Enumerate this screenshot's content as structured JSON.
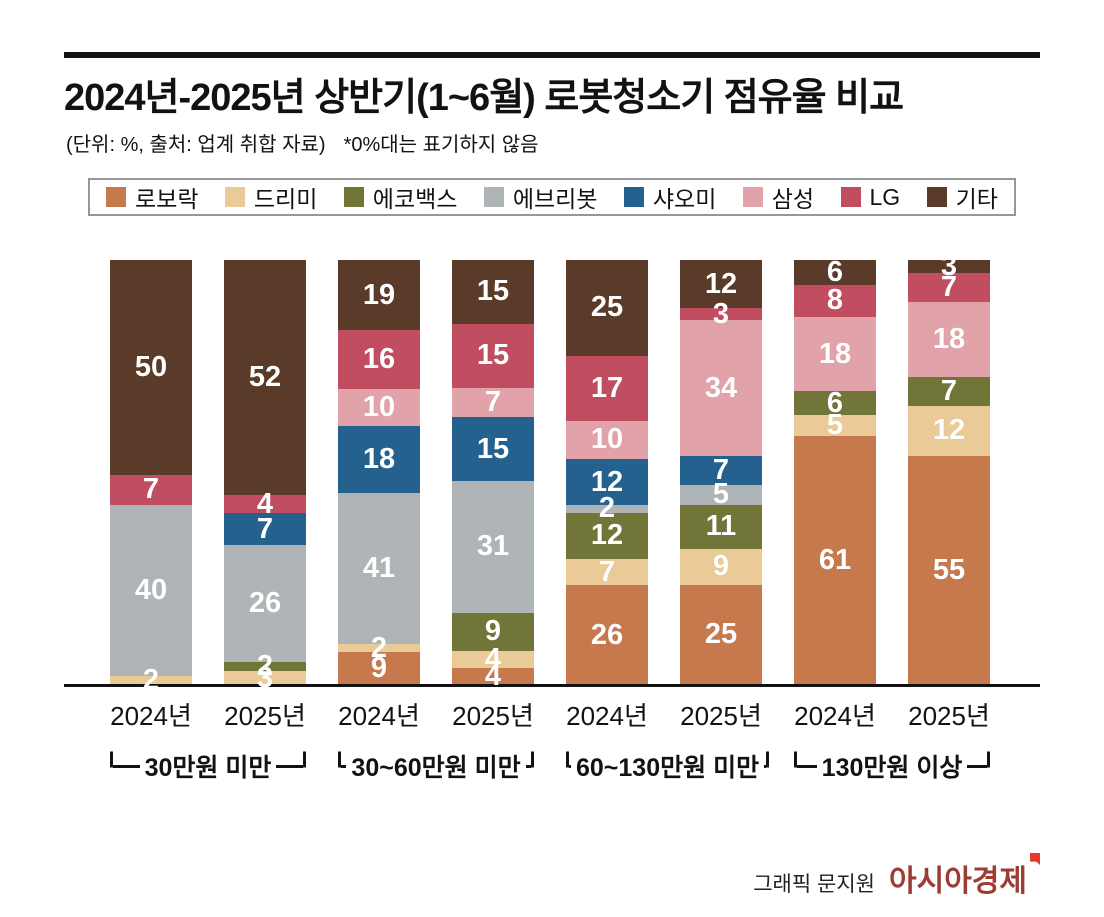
{
  "header": {
    "title": "2024년-2025년 상반기(1~6월) 로봇청소기 점유율 비교",
    "subtitle": "(단위: %, 출처: 업계 취합 자료)",
    "note": "*0%대는 표기하지 않음"
  },
  "legend": {
    "items": [
      {
        "label": "로보락",
        "color": "#C7794E"
      },
      {
        "label": "드리미",
        "color": "#EACA96"
      },
      {
        "label": "에코백스",
        "color": "#717538"
      },
      {
        "label": "에브리봇",
        "color": "#AFB5B7"
      },
      {
        "label": "샤오미",
        "color": "#24618E"
      },
      {
        "label": "삼성",
        "color": "#E2A2A9"
      },
      {
        "label": "LG",
        "color": "#C14D60"
      },
      {
        "label": "기타",
        "color": "#5A3A28"
      }
    ]
  },
  "chart_data": {
    "type": "bar",
    "stacked": true,
    "orientation": "vertical",
    "unit": "%",
    "title": "2024년-2025년 상반기(1~6월) 로봇청소기 점유율 비교",
    "legend_position": "top",
    "legend_entries": [
      "로보락",
      "드리미",
      "에코백스",
      "에브리봇",
      "샤오미",
      "삼성",
      "LG",
      "기타"
    ],
    "note": "0%대는 표기하지 않음 (0% range segments are unlabeled)",
    "groups": [
      {
        "label": "30만원 미만",
        "bars": [
          {
            "category": "2024년",
            "segments": [
              {
                "brand": "드리미",
                "value": 2
              },
              {
                "brand": "에브리봇",
                "value": 40
              },
              {
                "brand": "LG",
                "value": 7
              },
              {
                "brand": "기타",
                "value": 50
              }
            ]
          },
          {
            "category": "2025년",
            "segments": [
              {
                "brand": "드리미",
                "value": 3
              },
              {
                "brand": "에코백스",
                "value": 2
              },
              {
                "brand": "에브리봇",
                "value": 26
              },
              {
                "brand": "샤오미",
                "value": 7
              },
              {
                "brand": "LG",
                "value": 4
              },
              {
                "brand": "기타",
                "value": 52
              }
            ]
          }
        ]
      },
      {
        "label": "30~60만원 미만",
        "bars": [
          {
            "category": "2024년",
            "segments": [
              {
                "brand": "로보락",
                "value": 9
              },
              {
                "brand": "드리미",
                "value": 2
              },
              {
                "brand": "에브리봇",
                "value": 41
              },
              {
                "brand": "샤오미",
                "value": 18
              },
              {
                "brand": "삼성",
                "value": 10
              },
              {
                "brand": "LG",
                "value": 16
              },
              {
                "brand": "기타",
                "value": 19
              }
            ]
          },
          {
            "category": "2025년",
            "segments": [
              {
                "brand": "로보락",
                "value": 4
              },
              {
                "brand": "드리미",
                "value": 4
              },
              {
                "brand": "에코백스",
                "value": 9
              },
              {
                "brand": "에브리봇",
                "value": 31
              },
              {
                "brand": "샤오미",
                "value": 15
              },
              {
                "brand": "삼성",
                "value": 7
              },
              {
                "brand": "LG",
                "value": 15
              },
              {
                "brand": "기타",
                "value": 15
              }
            ]
          }
        ]
      },
      {
        "label": "60~130만원 미만",
        "bars": [
          {
            "category": "2024년",
            "segments": [
              {
                "brand": "로보락",
                "value": 26
              },
              {
                "brand": "드리미",
                "value": 7
              },
              {
                "brand": "에코백스",
                "value": 12
              },
              {
                "brand": "에브리봇",
                "value": 2
              },
              {
                "brand": "샤오미",
                "value": 12
              },
              {
                "brand": "삼성",
                "value": 10
              },
              {
                "brand": "LG",
                "value": 17
              },
              {
                "brand": "기타",
                "value": 25
              }
            ]
          },
          {
            "category": "2025년",
            "segments": [
              {
                "brand": "로보락",
                "value": 25
              },
              {
                "brand": "드리미",
                "value": 9
              },
              {
                "brand": "에코백스",
                "value": 11
              },
              {
                "brand": "에브리봇",
                "value": 5
              },
              {
                "brand": "샤오미",
                "value": 7
              },
              {
                "brand": "삼성",
                "value": 34
              },
              {
                "brand": "LG",
                "value": 3
              },
              {
                "brand": "기타",
                "value": 12
              }
            ]
          }
        ]
      },
      {
        "label": "130만원 이상",
        "bars": [
          {
            "category": "2024년",
            "segments": [
              {
                "brand": "로보락",
                "value": 61
              },
              {
                "brand": "드리미",
                "value": 5
              },
              {
                "brand": "에코백스",
                "value": 6
              },
              {
                "brand": "삼성",
                "value": 18
              },
              {
                "brand": "LG",
                "value": 8
              },
              {
                "brand": "기타",
                "value": 6
              }
            ]
          },
          {
            "category": "2025년",
            "segments": [
              {
                "brand": "로보락",
                "value": 55
              },
              {
                "brand": "드리미",
                "value": 12
              },
              {
                "brand": "에코백스",
                "value": 7
              },
              {
                "brand": "삼성",
                "value": 18
              },
              {
                "brand": "LG",
                "value": 7
              },
              {
                "brand": "기타",
                "value": 3
              }
            ]
          }
        ]
      }
    ]
  },
  "footer": {
    "credit": "그래픽 문지원",
    "publisher": "아시아경제"
  }
}
